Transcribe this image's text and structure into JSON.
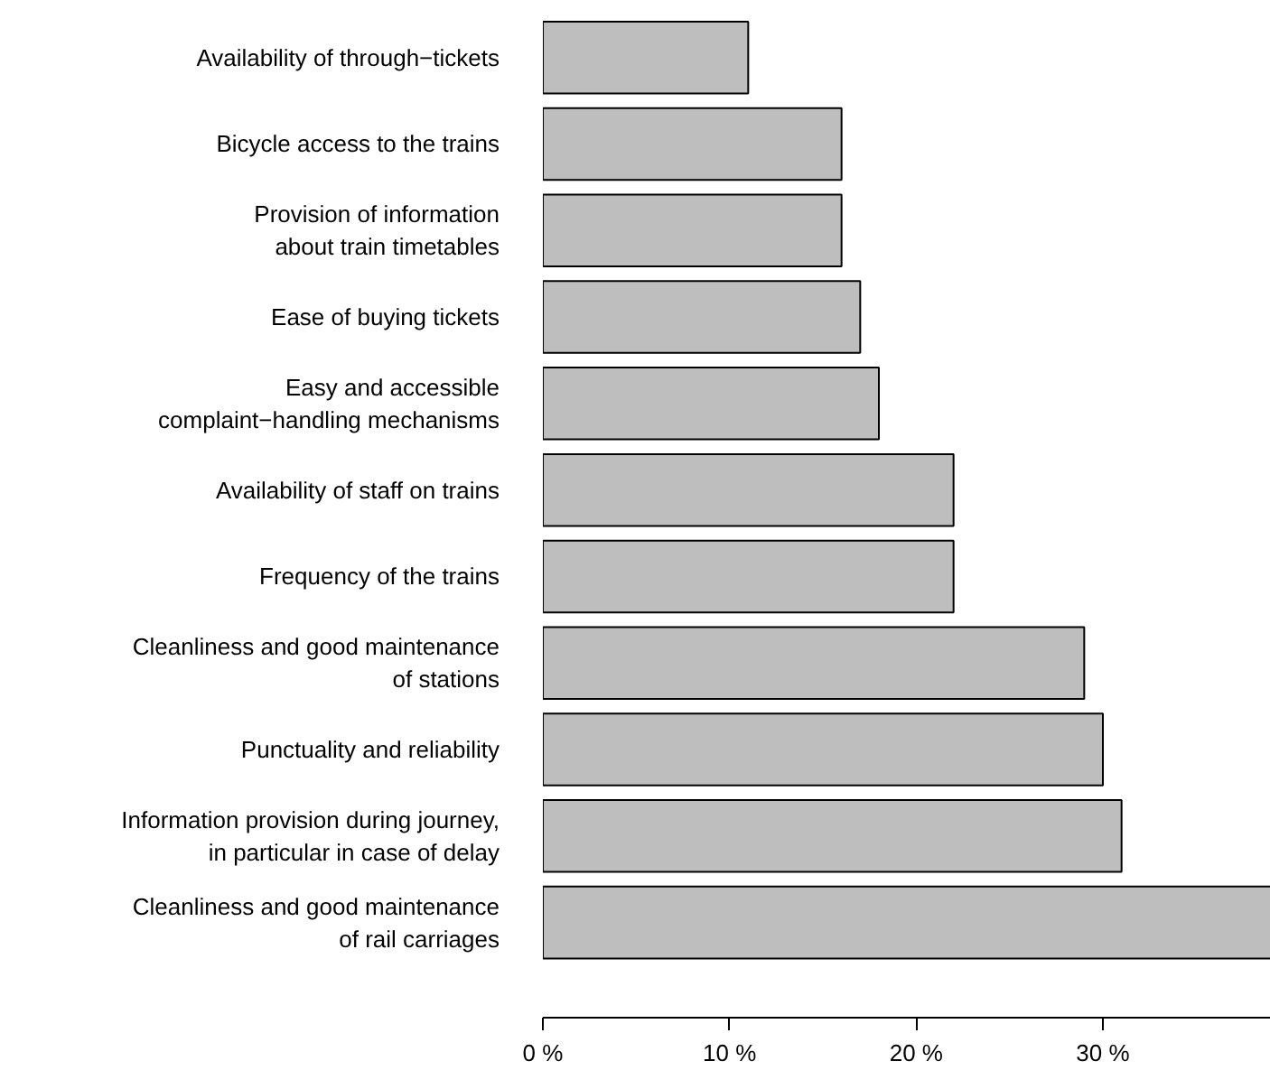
{
  "chart_data": {
    "type": "bar",
    "orientation": "horizontal",
    "categories": [
      "Availability of through−tickets",
      "Bicycle access to the trains",
      "Provision of information\nabout train timetables",
      "Ease of buying tickets",
      "Easy and accessible\ncomplaint−handling mechanisms",
      "Availability of staff on trains",
      "Frequency of the trains",
      "Cleanliness and good maintenance\nof stations",
      "Punctuality and reliability",
      "Information provision during journey,\nin particular in case of delay",
      "Cleanliness and good maintenance\nof rail carriages"
    ],
    "values": [
      11,
      16,
      16,
      17,
      18,
      22,
      22,
      29,
      30,
      31,
      39
    ],
    "color": "#bebebe",
    "xlim": [
      0,
      39
    ],
    "xticks": [
      {
        "value": 0,
        "label": "0 %"
      },
      {
        "value": 10,
        "label": "10 %"
      },
      {
        "value": 20,
        "label": "20 %"
      },
      {
        "value": 30,
        "label": "30 %"
      }
    ],
    "grid": false
  }
}
